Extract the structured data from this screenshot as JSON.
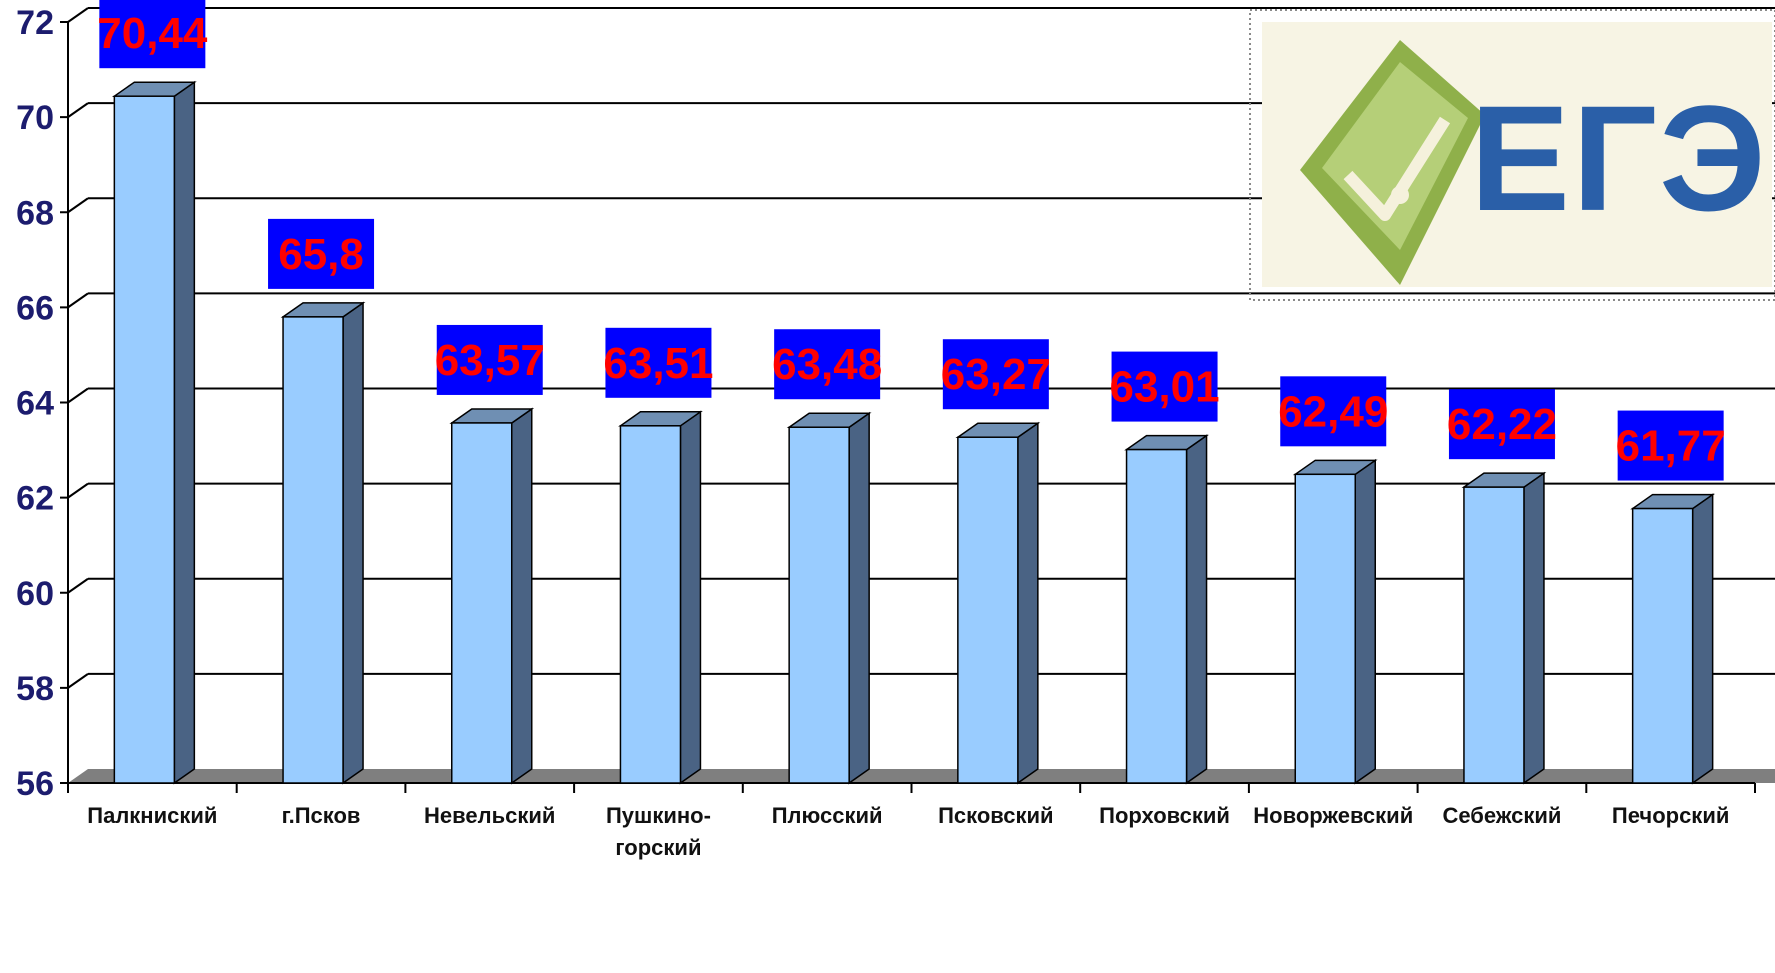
{
  "chart_data": {
    "type": "bar",
    "style": "3d-column",
    "categories": [
      "Палкниский",
      "г.Псков",
      "Невельский",
      "Пушкино-горский",
      "Плюсский",
      "Псковский",
      "Порховский",
      "Новоржевский",
      "Себежский",
      "Печорский"
    ],
    "category_lines": [
      [
        "Палкниский"
      ],
      [
        "г.Псков"
      ],
      [
        "Невельский"
      ],
      [
        "Пушкино-",
        "горский"
      ],
      [
        "Плюсский"
      ],
      [
        "Псковский"
      ],
      [
        "Порховский"
      ],
      [
        "Новоржевский"
      ],
      [
        "Себежский"
      ],
      [
        "Печорский"
      ]
    ],
    "values": [
      70.44,
      65.8,
      63.57,
      63.51,
      63.48,
      63.27,
      63.01,
      62.49,
      62.22,
      61.77
    ],
    "data_labels": [
      "70,44",
      "65,8",
      "63,57",
      "63,51",
      "63,48",
      "63,27",
      "63,01",
      "62,49",
      "62,22",
      "61,77"
    ],
    "ylim": [
      56,
      72
    ],
    "yticks": [
      "56",
      "58",
      "60",
      "62",
      "64",
      "66",
      "68",
      "70",
      "72"
    ],
    "grid": true,
    "colors": {
      "bar_front": "#99ccff",
      "bar_side": "#4a6384",
      "bar_top": "#6f8fb3",
      "label_box": "#0000ff",
      "label_text": "#ff0000",
      "axis_text": "#1c1c6e",
      "floor": "#7f7f7f"
    }
  },
  "logo": {
    "text": "ЕГЭ",
    "icon": "pen-nib-check-icon",
    "colors": {
      "emblem": "#8fb04a",
      "text": "#2a5fa8",
      "background": "#f7f4e4"
    }
  }
}
